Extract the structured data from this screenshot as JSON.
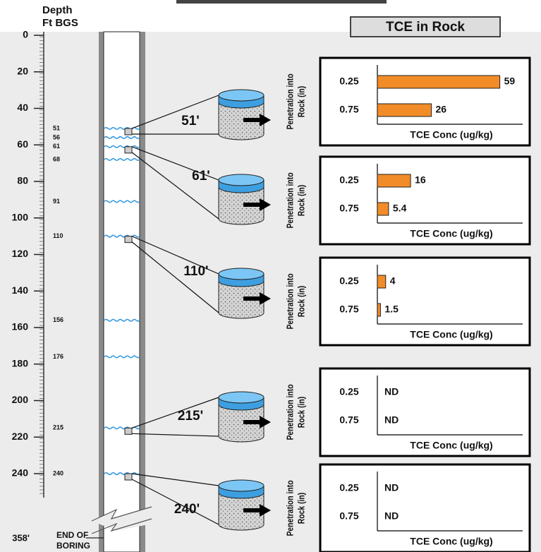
{
  "title": "TCE in Rock",
  "depth_axis": {
    "label": [
      "Depth",
      "Ft BGS"
    ],
    "ylim": [
      0,
      240
    ],
    "yticks": [
      0,
      20,
      40,
      60,
      80,
      100,
      120,
      140,
      160,
      180,
      200,
      220,
      240
    ]
  },
  "end_of_boring": {
    "depth_label": "358'",
    "text": [
      "END OF",
      "BORING"
    ]
  },
  "fractures": [
    51,
    56,
    61,
    68,
    91,
    110,
    156,
    176,
    215,
    240
  ],
  "chart_labels": {
    "y": [
      "Penetration into",
      "Rock (in)"
    ],
    "x": "TCE Conc (ug/kg)"
  },
  "samples": [
    {
      "label": "51'",
      "depth": 51,
      "chart": {
        "type": "bar",
        "categories": [
          "0.25",
          "0.75"
        ],
        "values": [
          59,
          26
        ],
        "xlim": [
          0,
          70
        ],
        "color": "#f28c28"
      }
    },
    {
      "label": "61'",
      "depth": 61,
      "chart": {
        "type": "bar",
        "categories": [
          "0.25",
          "0.75"
        ],
        "values": [
          16,
          5.4
        ],
        "xlim": [
          0,
          70
        ],
        "color": "#f28c28"
      }
    },
    {
      "label": "110'",
      "depth": 110,
      "chart": {
        "type": "bar",
        "categories": [
          "0.25",
          "0.75"
        ],
        "values": [
          4,
          1.5
        ],
        "xlim": [
          0,
          70
        ],
        "color": "#f28c28"
      }
    },
    {
      "label": "215'",
      "depth": 215,
      "chart": {
        "type": "bar",
        "categories": [
          "0.25",
          "0.75"
        ],
        "values": [
          null,
          null
        ],
        "value_labels": [
          "ND",
          "ND"
        ],
        "xlim": [
          0,
          70
        ],
        "color": "#f28c28"
      }
    },
    {
      "label": "240'",
      "depth": 240,
      "chart": {
        "type": "bar",
        "categories": [
          "0.25",
          "0.75"
        ],
        "values": [
          null,
          null
        ],
        "value_labels": [
          "ND",
          "ND"
        ],
        "xlim": [
          0,
          70
        ],
        "color": "#f28c28"
      }
    }
  ]
}
